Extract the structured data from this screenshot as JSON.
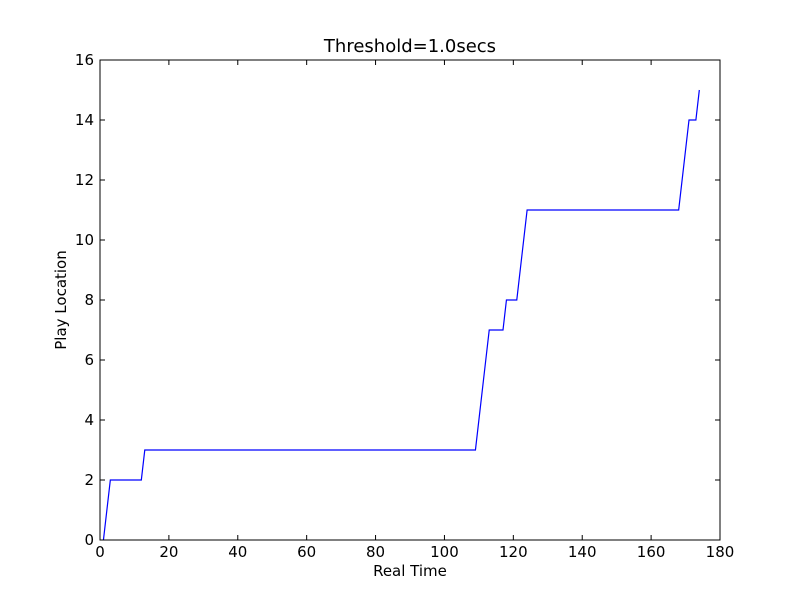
{
  "chart_data": {
    "type": "line",
    "title": "Threshold=1.0secs",
    "xlabel": "Real Time",
    "ylabel": "Play Location",
    "xlim": [
      0,
      180
    ],
    "ylim": [
      0,
      16
    ],
    "xticks": [
      0,
      20,
      40,
      60,
      80,
      100,
      120,
      140,
      160,
      180
    ],
    "yticks": [
      0,
      2,
      4,
      6,
      8,
      10,
      12,
      14,
      16
    ],
    "grid": false,
    "series": [
      {
        "color": "#0000ff",
        "x": [
          1,
          3,
          12,
          13,
          109,
          113,
          117,
          118,
          121,
          124,
          168,
          171,
          173,
          174
        ],
        "y": [
          0,
          2,
          2,
          3,
          3,
          7,
          7,
          8,
          8,
          11,
          11,
          14,
          14,
          15
        ]
      }
    ]
  }
}
